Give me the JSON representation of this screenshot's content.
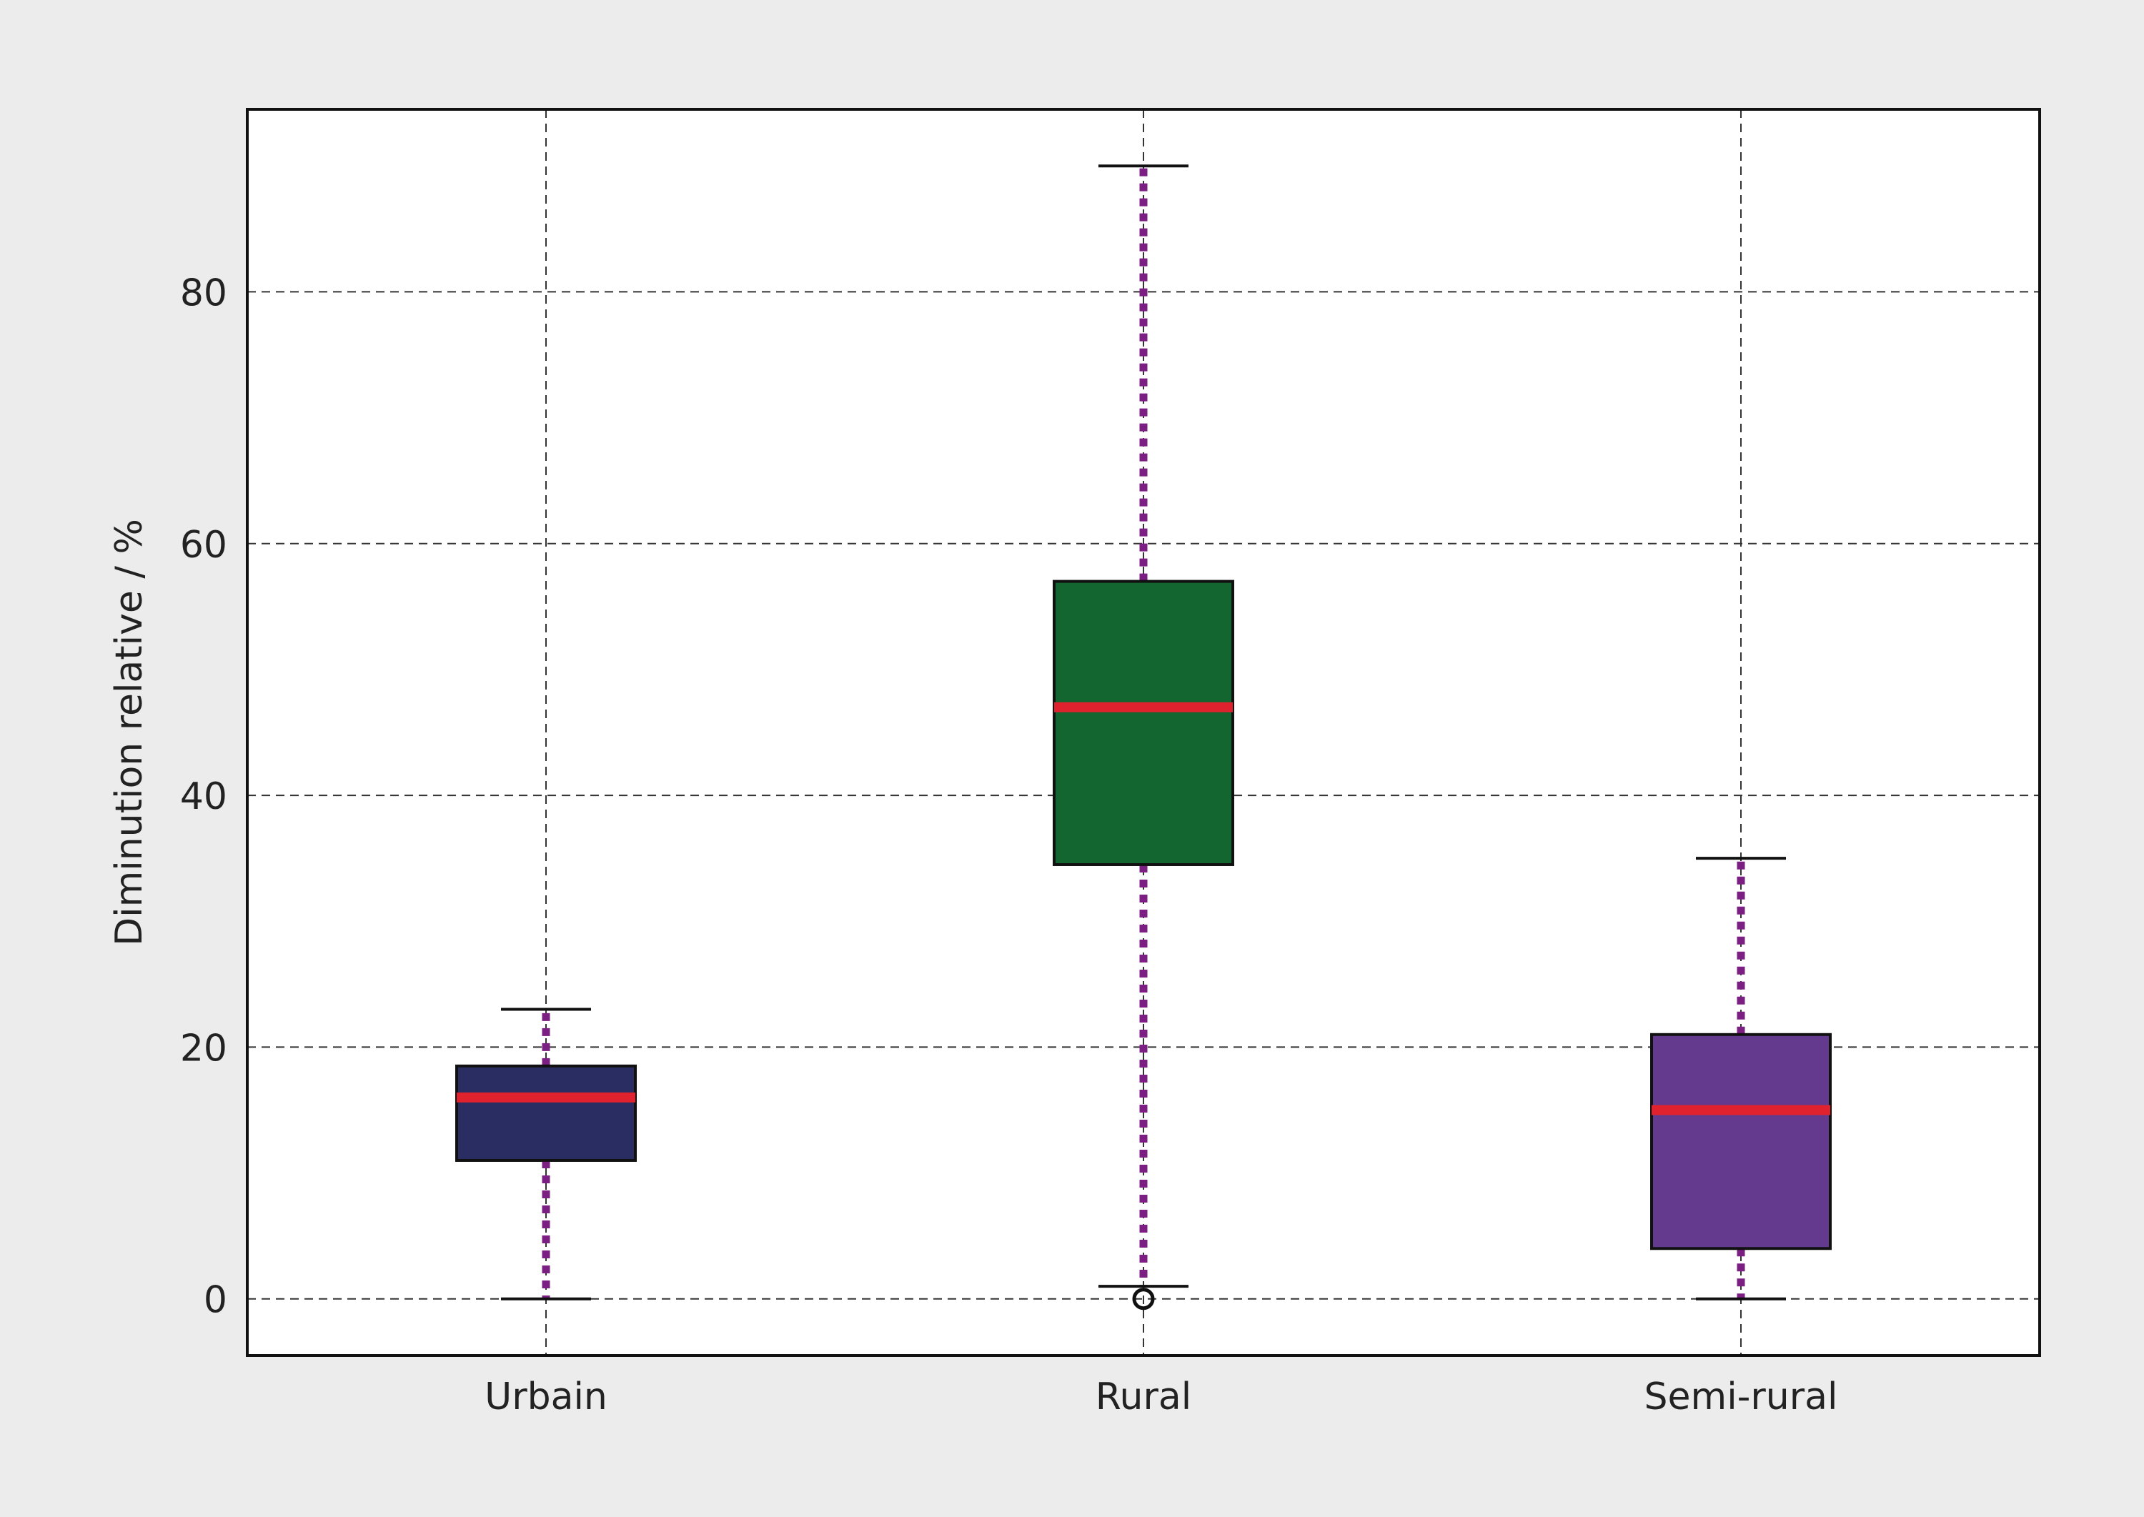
{
  "chart_data": {
    "type": "box",
    "title": "",
    "xlabel": "",
    "ylabel": "Diminution relative / %",
    "ylim": [
      -4.5,
      94.5
    ],
    "yticks": [
      0,
      20,
      40,
      60,
      80
    ],
    "grid": true,
    "categories": [
      "Urbain",
      "Rural",
      "Semi-rural"
    ],
    "boxes": [
      {
        "category": "Urbain",
        "whisker_low": 0,
        "q1": 11,
        "median": 16,
        "q3": 18.5,
        "whisker_high": 23,
        "outliers": [],
        "fill": "#2a2d62"
      },
      {
        "category": "Rural",
        "whisker_low": 1,
        "q1": 34.5,
        "median": 47,
        "q3": 57,
        "whisker_high": 90,
        "outliers": [
          0
        ],
        "fill": "#146630"
      },
      {
        "category": "Semi-rural",
        "whisker_low": 0,
        "q1": 4,
        "median": 15,
        "q3": 21,
        "whisker_high": 35,
        "outliers": [],
        "fill": "#633a8e"
      }
    ],
    "colors": {
      "median": "#e0222e",
      "whisker": "#7b1f82",
      "grid": "#333333",
      "axis": "#111111",
      "background": "#ececec",
      "plot_background": "#ffffff"
    }
  }
}
